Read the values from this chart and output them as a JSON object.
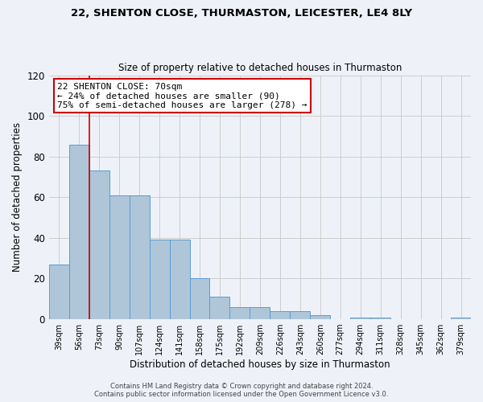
{
  "title_line1": "22, SHENTON CLOSE, THURMASTON, LEICESTER, LE4 8LY",
  "title_line2": "Size of property relative to detached houses in Thurmaston",
  "xlabel": "Distribution of detached houses by size in Thurmaston",
  "ylabel": "Number of detached properties",
  "categories": [
    "39sqm",
    "56sqm",
    "73sqm",
    "90sqm",
    "107sqm",
    "124sqm",
    "141sqm",
    "158sqm",
    "175sqm",
    "192sqm",
    "209sqm",
    "226sqm",
    "243sqm",
    "260sqm",
    "277sqm",
    "294sqm",
    "311sqm",
    "328sqm",
    "345sqm",
    "362sqm",
    "379sqm"
  ],
  "values": [
    27,
    86,
    73,
    61,
    61,
    39,
    39,
    20,
    11,
    6,
    6,
    4,
    4,
    2,
    0,
    1,
    1,
    0,
    0,
    0,
    1
  ],
  "bar_color": "#aec6d8",
  "bar_edge_color": "#5b9bd5",
  "grid_color": "#cccccc",
  "background_color": "#eef2f8",
  "annotation_text": "22 SHENTON CLOSE: 70sqm\n← 24% of detached houses are smaller (90)\n75% of semi-detached houses are larger (278) →",
  "annotation_box_color": "#ffffff",
  "annotation_box_edge_color": "#cc0000",
  "vline_x": 1.5,
  "vline_color": "#cc0000",
  "ylim": [
    0,
    120
  ],
  "yticks": [
    0,
    20,
    40,
    60,
    80,
    100,
    120
  ],
  "footer_line1": "Contains HM Land Registry data © Crown copyright and database right 2024.",
  "footer_line2": "Contains public sector information licensed under the Open Government Licence v3.0."
}
